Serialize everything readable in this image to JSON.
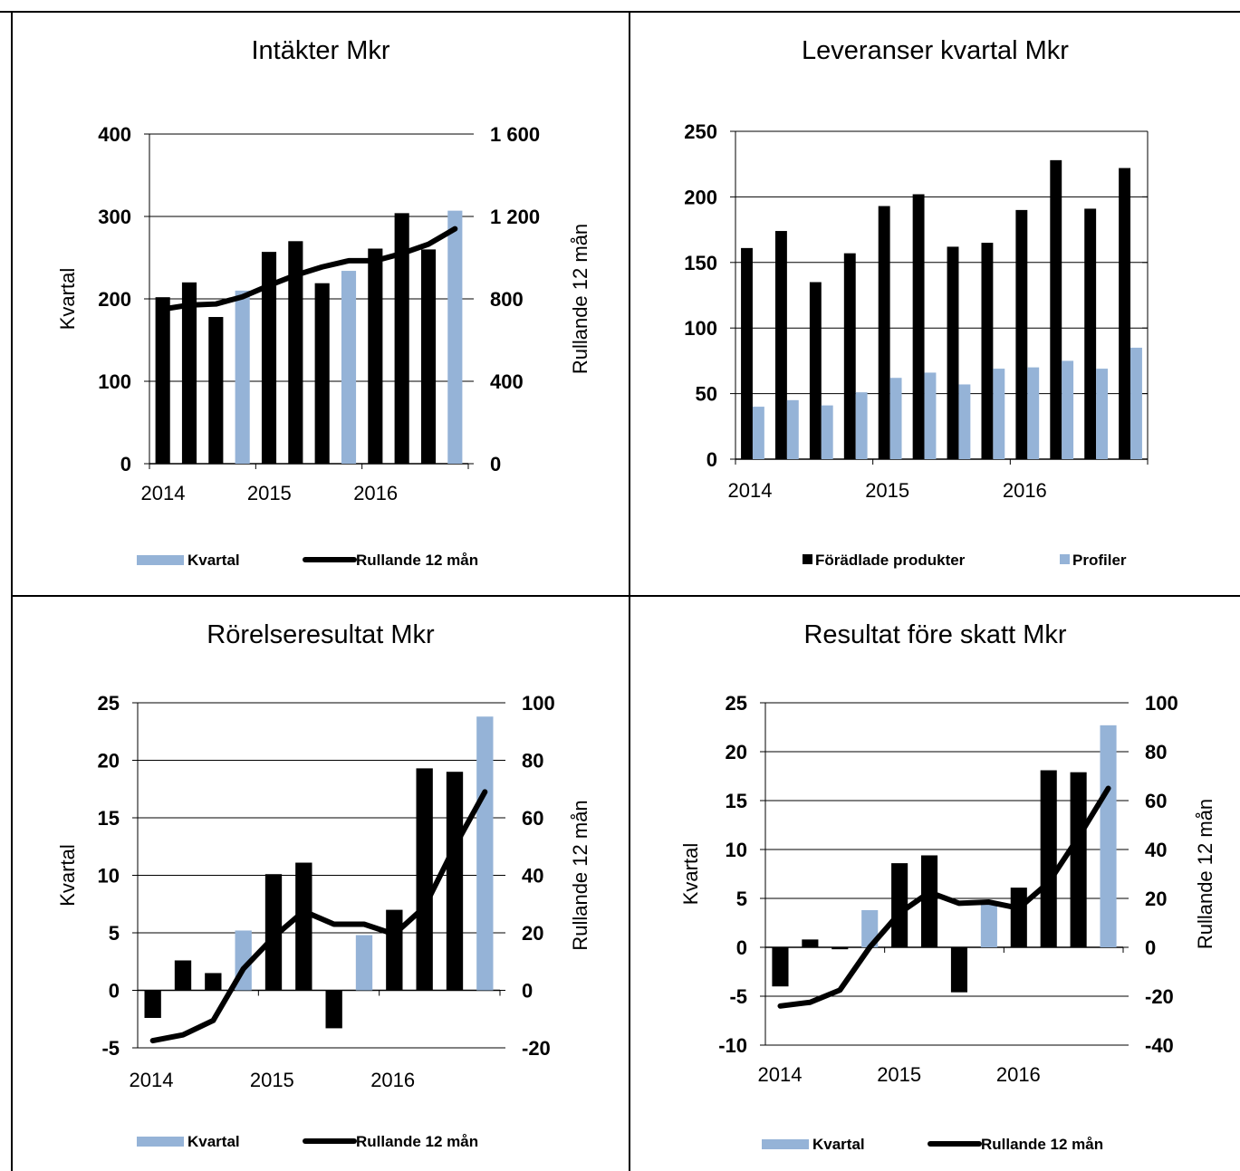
{
  "colors": {
    "dark": "#000000",
    "light": "#95b3d7"
  },
  "charts": {
    "intakter": {
      "title": "Intäkter Mkr",
      "y_left_label": "Kvartal",
      "y_right_label": "Rullande 12 mån",
      "y_left_ticks": [
        "400",
        "300",
        "200",
        "100",
        "0"
      ],
      "y_right_ticks": [
        "1 600",
        "1 200",
        "800",
        "400",
        "0"
      ],
      "x_ticks": [
        "2014",
        "2015",
        "2016"
      ],
      "legend": {
        "bar": "Kvartal",
        "line": "Rullande 12 mån"
      }
    },
    "leveranser": {
      "title": "Leveranser kvartal Mkr",
      "y_left_ticks": [
        "250",
        "200",
        "150",
        "100",
        "50",
        "0"
      ],
      "x_ticks": [
        "2014",
        "2015",
        "2016"
      ],
      "legend": {
        "dark": "Förädlade produkter",
        "light": "Profiler"
      }
    },
    "rorelse": {
      "title": "Rörelseresultat Mkr",
      "y_left_label": "Kvartal",
      "y_right_label": "Rullande 12 mån",
      "y_left_ticks": [
        "25",
        "20",
        "15",
        "10",
        "5",
        "0",
        "-5"
      ],
      "y_right_ticks": [
        "100",
        "80",
        "60",
        "40",
        "20",
        "0",
        "-20"
      ],
      "x_ticks": [
        "2014",
        "2015",
        "2016"
      ],
      "legend": {
        "bar": "Kvartal",
        "line": "Rullande 12 mån"
      }
    },
    "resultat": {
      "title": "Resultat före skatt Mkr",
      "y_left_label": "Kvartal",
      "y_right_label": "Rullande 12 mån",
      "y_left_ticks": [
        "25",
        "20",
        "15",
        "10",
        "5",
        "0",
        "-5",
        "-10"
      ],
      "y_right_ticks": [
        "100",
        "80",
        "60",
        "40",
        "20",
        "0",
        "-20",
        "-40"
      ],
      "x_ticks": [
        "2014",
        "2015",
        "2016"
      ],
      "legend": {
        "bar": "Kvartal",
        "line": "Rullande 12 mån"
      }
    }
  },
  "chart_data": [
    {
      "type": "bar",
      "title": "Intäkter Mkr",
      "ylabel": "Kvartal",
      "y2label": "Rullande 12 mån",
      "ylim": [
        0,
        400
      ],
      "y2lim": [
        0,
        1600
      ],
      "x_labels": [
        "2014",
        "2015",
        "2016"
      ],
      "series": [
        {
          "name": "Kvartal",
          "axis": "left",
          "values": [
            202,
            220,
            178,
            210,
            257,
            270,
            219,
            234,
            261,
            304,
            260,
            307
          ],
          "bar_colors": [
            "dark",
            "dark",
            "dark",
            "light",
            "dark",
            "dark",
            "dark",
            "light",
            "dark",
            "dark",
            "dark",
            "light"
          ]
        },
        {
          "name": "Rullande 12 mån",
          "axis": "right",
          "kind": "line",
          "values": [
            750,
            770,
            775,
            810,
            865,
            915,
            955,
            985,
            985,
            1020,
            1065,
            1140
          ]
        }
      ]
    },
    {
      "type": "bar",
      "title": "Leveranser kvartal Mkr",
      "ylim": [
        0,
        250
      ],
      "x_labels": [
        "2014",
        "2015",
        "2016"
      ],
      "series": [
        {
          "name": "Förädlade produkter",
          "values": [
            161,
            174,
            135,
            157,
            193,
            202,
            162,
            165,
            190,
            228,
            191,
            222
          ]
        },
        {
          "name": "Profiler",
          "values": [
            40,
            45,
            41,
            51,
            62,
            66,
            57,
            69,
            70,
            75,
            69,
            85
          ]
        }
      ]
    },
    {
      "type": "bar",
      "title": "Rörelseresultat Mkr",
      "ylabel": "Kvartal",
      "y2label": "Rullande 12 mån",
      "ylim": [
        -5,
        25
      ],
      "y2lim": [
        -20,
        100
      ],
      "x_labels": [
        "2014",
        "2015",
        "2016"
      ],
      "series": [
        {
          "name": "Kvartal",
          "axis": "left",
          "values": [
            -2.4,
            2.6,
            1.5,
            5.2,
            10.1,
            11.1,
            -3.3,
            4.8,
            7.0,
            19.3,
            19.0,
            23.8
          ],
          "bar_colors": [
            "dark",
            "dark",
            "dark",
            "light",
            "dark",
            "dark",
            "dark",
            "light",
            "dark",
            "dark",
            "dark",
            "light"
          ]
        },
        {
          "name": "Rullande 12 mån",
          "axis": "right",
          "kind": "line",
          "values": [
            -17.5,
            -15.5,
            -10.5,
            7.5,
            18.5,
            27.5,
            23,
            23,
            19.5,
            29,
            50,
            69
          ]
        }
      ]
    },
    {
      "type": "bar",
      "title": "Resultat före skatt Mkr",
      "ylabel": "Kvartal",
      "y2label": "Rullande 12 mån",
      "ylim": [
        -10,
        25
      ],
      "y2lim": [
        -40,
        100
      ],
      "x_labels": [
        "2014",
        "2015",
        "2016"
      ],
      "series": [
        {
          "name": "Kvartal",
          "axis": "left",
          "values": [
            -4.0,
            0.8,
            -0.2,
            3.8,
            8.6,
            9.4,
            -4.6,
            4.4,
            6.1,
            18.1,
            17.9,
            22.7
          ],
          "bar_colors": [
            "dark",
            "dark",
            "dark",
            "light",
            "dark",
            "dark",
            "dark",
            "light",
            "dark",
            "dark",
            "dark",
            "light"
          ]
        },
        {
          "name": "Rullande 12 mån",
          "axis": "right",
          "kind": "line",
          "values": [
            -24,
            -22.5,
            -17.5,
            0,
            14,
            22.5,
            18,
            18.5,
            16,
            26.5,
            45,
            65
          ]
        }
      ]
    }
  ]
}
